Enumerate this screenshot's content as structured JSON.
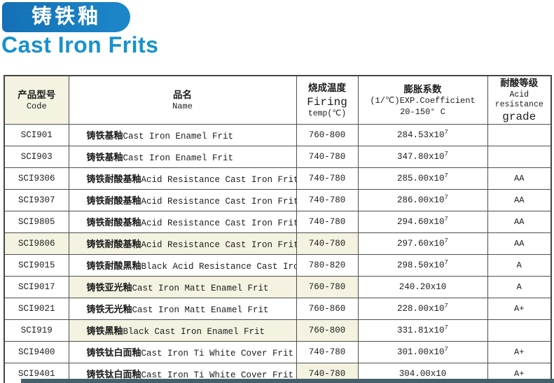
{
  "page": {
    "banner_title": "铸铁釉",
    "subtitle": "Cast Iron Frits",
    "banner_color": "#1779c0",
    "subtitle_color": "#1791cd",
    "footer_bar_color": "#45606a",
    "header_tint_color": "#f4f2e0"
  },
  "table": {
    "headers": {
      "code_cn": "产品型号",
      "code_en": "Code",
      "name_cn": "品名",
      "name_en": "Name",
      "firing_cn": "烧成温度",
      "firing_en": "Firing",
      "firing_unit": "temp(℃)",
      "exp_cn": "膨胀系数",
      "exp_en": "(1/℃)EXP.Coefficient",
      "exp_range": "20-150° C",
      "grade_cn": "耐酸等级",
      "grade_en1": "Acid resistance",
      "grade_en2": "grade"
    },
    "rows": [
      {
        "code": "SCI901",
        "name_cn": "铸铁基釉",
        "name_en": "Cast Iron Enamel Frit",
        "firing": "760-800",
        "exp": "284.53x10",
        "exp_sup": "7",
        "grade": ""
      },
      {
        "code": "SCI903",
        "name_cn": "铸铁基釉",
        "name_en": "Cast Iron Enamel Frit",
        "firing": "740-780",
        "exp": "347.80x10",
        "exp_sup": "7",
        "grade": ""
      },
      {
        "code": "SCI9306",
        "name_cn": "铸铁耐酸基釉",
        "name_en": "Acid Resistance Cast Iron Frit",
        "firing": "740-780",
        "exp": "285.00x10",
        "exp_sup": "7",
        "grade": "AA"
      },
      {
        "code": "SCI9307",
        "name_cn": "铸铁耐酸基釉",
        "name_en": "Acid Resistance Cast Iron Frit",
        "firing": "740-780",
        "exp": "286.00x10",
        "exp_sup": "7",
        "grade": "AA"
      },
      {
        "code": "SCI9805",
        "name_cn": "铸铁耐酸基釉",
        "name_en": "Acid Resistance Cast Iron Frit",
        "firing": "740-780",
        "exp": "294.60x10",
        "exp_sup": "7",
        "grade": "AA"
      },
      {
        "code": "SCI9806",
        "name_cn": "铸铁耐酸基釉",
        "name_en": "Acid Resistance Cast Iron Frit",
        "firing": "740-780",
        "exp": "297.60x10",
        "exp_sup": "7",
        "grade": "AA"
      },
      {
        "code": "SCI9015",
        "name_cn": "铸铁耐酸黑釉",
        "name_en": "Black Acid Resistance Cast Iron Frit",
        "firing": "780-820",
        "exp": "298.50x10",
        "exp_sup": "7",
        "grade": "A"
      },
      {
        "code": "SCI9017",
        "name_cn": "铸铁亚光釉",
        "name_en": "Cast Iron Matt Enamel Frit",
        "firing": "760-780",
        "exp": "240.20x10",
        "exp_sup": "",
        "grade": "A"
      },
      {
        "code": "SCI9021",
        "name_cn": "铸铁无光釉",
        "name_en": "Cast Iron Matt Enamel Frit",
        "firing": "760-860",
        "exp": "228.00x10",
        "exp_sup": "7",
        "grade": "A+"
      },
      {
        "code": "SCI919",
        "name_cn": "铸铁黑釉",
        "name_en": "Black Cast Iron Enamel Frit",
        "firing": "760-800",
        "exp": "331.81x10",
        "exp_sup": "7",
        "grade": ""
      },
      {
        "code": "SCI9400",
        "name_cn": "铸铁钛白面釉",
        "name_en": "Cast Iron Ti White Cover Frit",
        "firing": "740-780",
        "exp": "301.00x10",
        "exp_sup": "7",
        "grade": "A+"
      },
      {
        "code": "SCI9401",
        "name_cn": "铸铁钛白面釉",
        "name_en": "Cast Iron Ti White Cover Frit",
        "firing": "740-780",
        "exp": "304.00x10",
        "exp_sup": "",
        "grade": "A+"
      }
    ]
  }
}
